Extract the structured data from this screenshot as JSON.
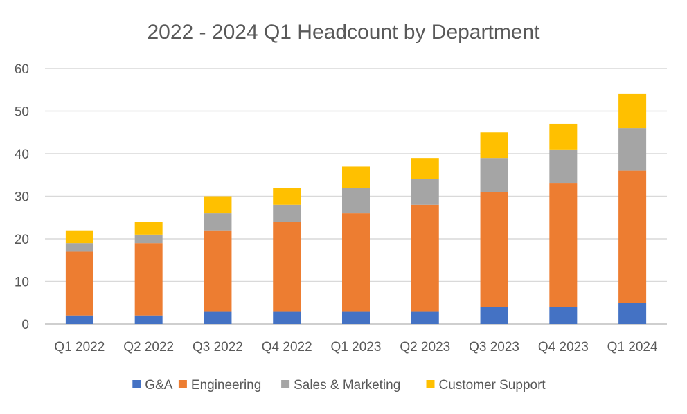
{
  "chart_data": {
    "type": "bar",
    "stacked": true,
    "title": "2022 - 2024 Q1 Headcount by Department",
    "xlabel": "",
    "ylabel": "",
    "ylim": [
      0,
      60
    ],
    "yticks": [
      0,
      10,
      20,
      30,
      40,
      50,
      60
    ],
    "grid": true,
    "legend_position": "bottom",
    "categories": [
      "Q1 2022",
      "Q2 2022",
      "Q3 2022",
      "Q4 2022",
      "Q1 2023",
      "Q2 2023",
      "Q3 2023",
      "Q4 2023",
      "Q1 2024"
    ],
    "series": [
      {
        "name": "G&A",
        "color": "#4472C4",
        "values": [
          2,
          2,
          3,
          3,
          3,
          3,
          4,
          4,
          5
        ]
      },
      {
        "name": "Engineering",
        "color": "#ED7D31",
        "values": [
          15,
          17,
          19,
          21,
          23,
          25,
          27,
          29,
          31
        ]
      },
      {
        "name": "Sales & Marketing",
        "color": "#A5A5A5",
        "values": [
          2,
          2,
          4,
          4,
          6,
          6,
          8,
          8,
          10
        ]
      },
      {
        "name": "Customer Support",
        "color": "#FFC000",
        "values": [
          3,
          3,
          4,
          4,
          5,
          5,
          6,
          6,
          8
        ]
      }
    ]
  }
}
